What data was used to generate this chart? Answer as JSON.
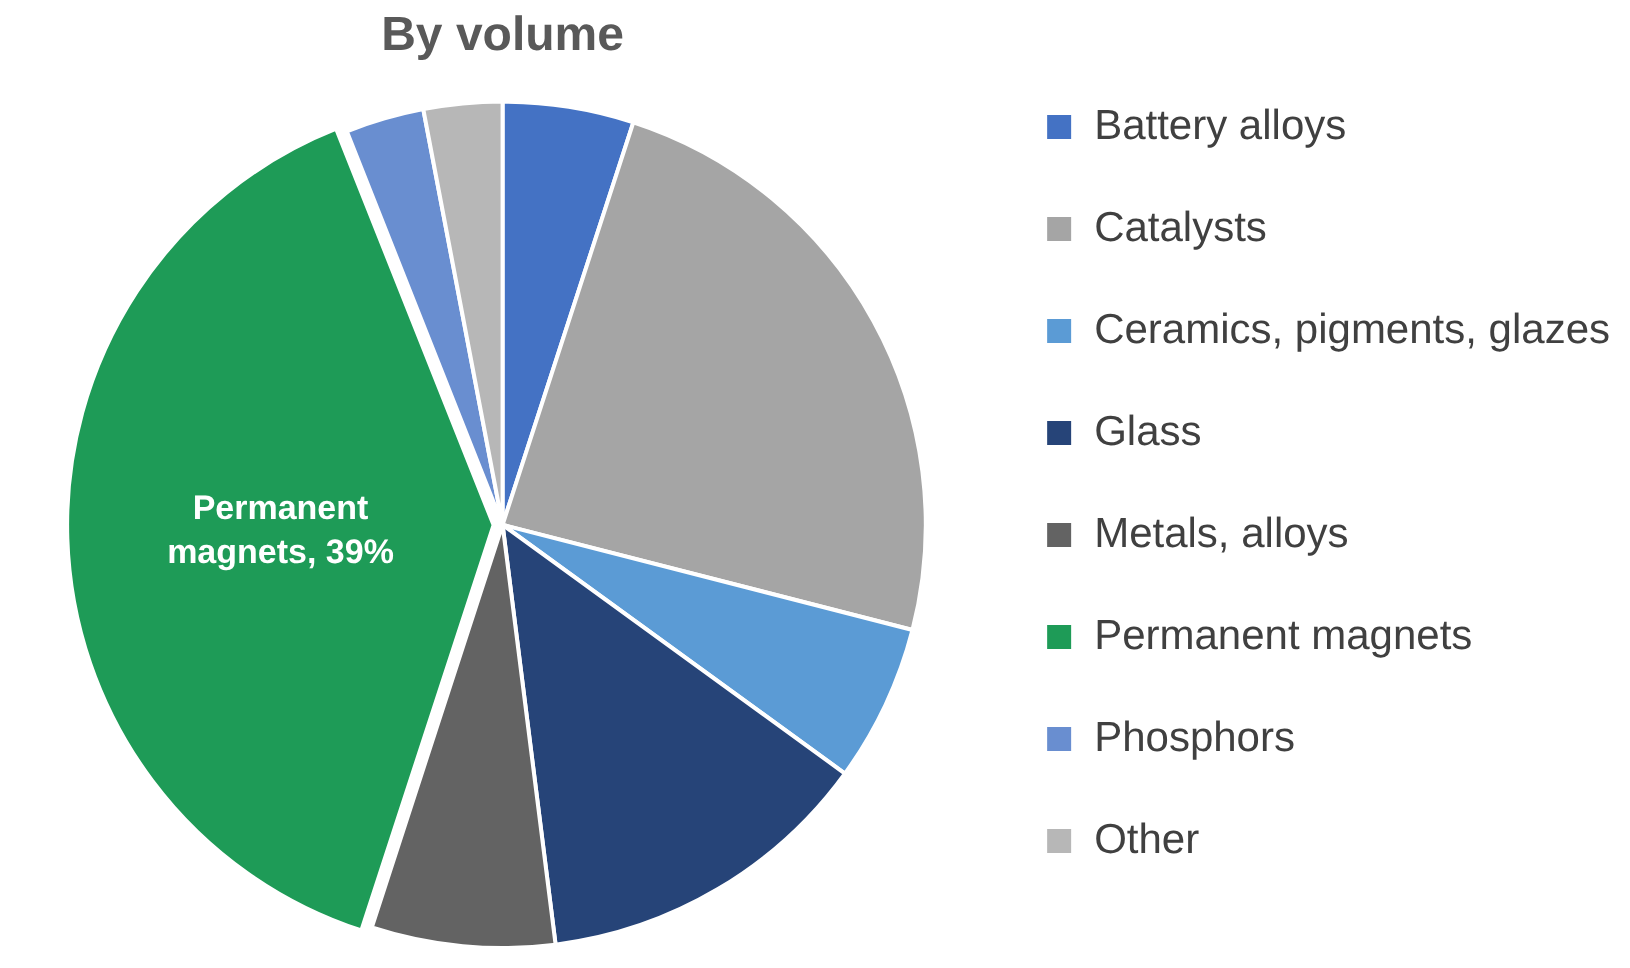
{
  "chart_data": {
    "type": "pie",
    "title": "By volume",
    "categories": [
      "Battery alloys",
      "Catalysts",
      "Ceramics, pigments, glazes",
      "Glass",
      "Metals, alloys",
      "Permanent magnets",
      "Phosphors",
      "Other"
    ],
    "values": [
      5,
      24,
      6,
      13,
      7,
      39,
      3,
      3
    ],
    "colors": [
      "#4472c4",
      "#a5a5a5",
      "#5b9bd5",
      "#264478",
      "#636363",
      "#1e9b57",
      "#698ed0",
      "#b7b7b7"
    ],
    "value_labels": [
      null,
      null,
      null,
      null,
      null,
      "Permanent magnets, 39%",
      null,
      null
    ],
    "legend": "right"
  }
}
